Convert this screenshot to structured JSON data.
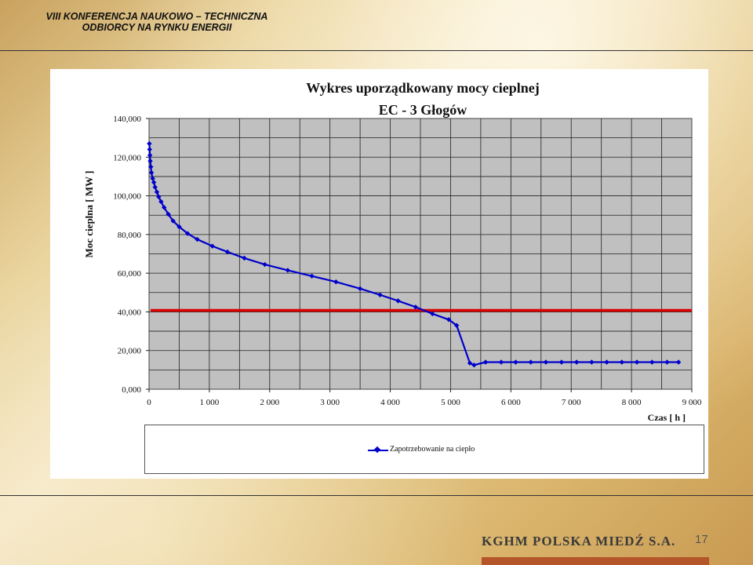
{
  "header": {
    "line1": "VIII KONFERENCJA NAUKOWO –  TECHNICZNA",
    "line2": "ODBIORCY NA RYNKU ENERGII"
  },
  "footer": {
    "logo_text": "KGHM POLSKA MIEDŹ S.A.",
    "page_number": "17"
  },
  "chart_data": {
    "type": "line",
    "title": "Wykres uporządkowany mocy cieplnej",
    "subtitle": "EC - 3 Głogów",
    "xlabel": "Czas [ h ]",
    "ylabel": "Moc cieplna [ MW ]",
    "xlim": [
      0,
      9000
    ],
    "ylim": [
      0,
      140000
    ],
    "x_ticks": [
      0,
      1000,
      2000,
      3000,
      4000,
      5000,
      6000,
      7000,
      8000,
      9000
    ],
    "x_tick_labels": [
      "0",
      "1 000",
      "2 000",
      "3 000",
      "4 000",
      "5 000",
      "6 000",
      "7 000",
      "8 000",
      "9 000"
    ],
    "y_ticks": [
      0,
      20000,
      40000,
      60000,
      80000,
      100000,
      120000,
      140000
    ],
    "y_tick_labels": [
      "0,000",
      "20,000",
      "40,000",
      "60,000",
      "80,000",
      "100,000",
      "120,000",
      "140,000"
    ],
    "grid": true,
    "plot_background": "#c0c0c0",
    "legend_position": "bottom",
    "series": [
      {
        "name": "Zapotrzebowanie na ciepło",
        "color": "#0000cc",
        "x": [
          5,
          10,
          15,
          20,
          30,
          40,
          60,
          80,
          100,
          130,
          160,
          200,
          250,
          320,
          400,
          500,
          640,
          800,
          1050,
          1300,
          1580,
          1920,
          2300,
          2700,
          3100,
          3500,
          3830,
          4130,
          4420,
          4700,
          4970,
          5100,
          5320,
          5390,
          5580,
          5840,
          6080,
          6330,
          6580,
          6840,
          7090,
          7340,
          7590,
          7840,
          8090,
          8340,
          8590,
          8780
        ],
        "y": [
          127000,
          124000,
          121000,
          118000,
          115000,
          112000,
          109000,
          107000,
          104500,
          102000,
          99500,
          97000,
          94000,
          90500,
          87000,
          84000,
          80500,
          77500,
          74000,
          71000,
          67800,
          64500,
          61500,
          58500,
          55500,
          52000,
          48800,
          45700,
          42500,
          39000,
          36000,
          33000,
          13500,
          12500,
          14000,
          14000,
          14000,
          14000,
          14000,
          14000,
          14000,
          14000,
          14000,
          14000,
          14000,
          14000,
          14000,
          14000
        ]
      }
    ],
    "reference_line": {
      "y": 40800,
      "color": "#dd0000"
    }
  }
}
